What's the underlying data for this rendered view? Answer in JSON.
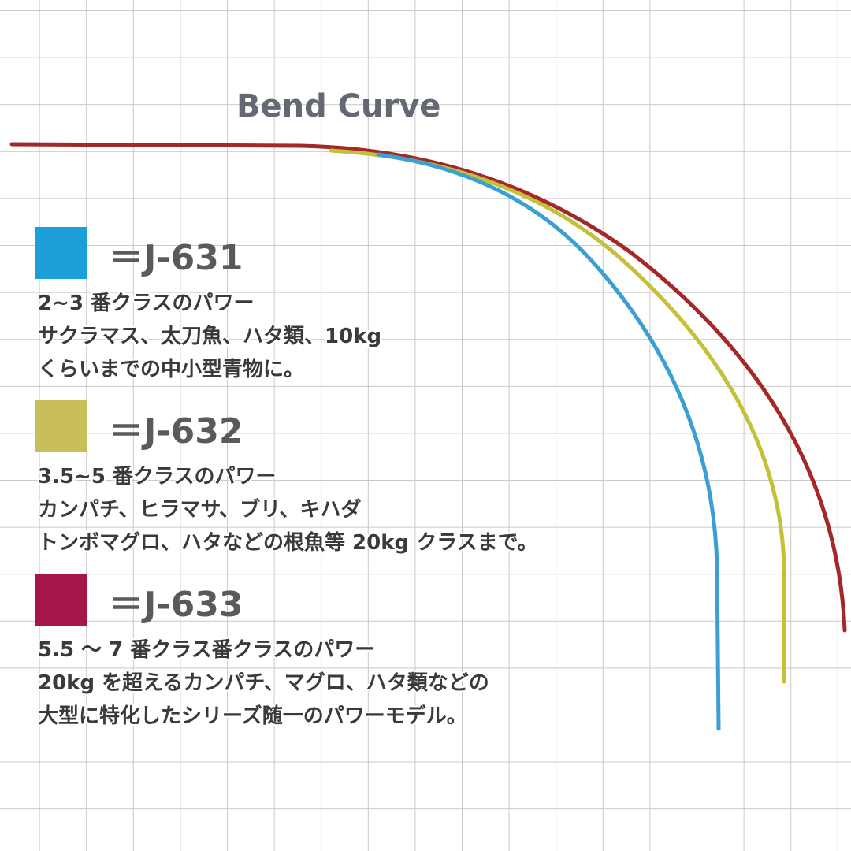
{
  "title": "Bend Curve",
  "legend": [
    {
      "label": "＝J-631",
      "color": "#1c9fd6",
      "lines": [
        "2~3 番クラスのパワー",
        "サクラマス、太刀魚、ハタ類、10kg",
        "くらいまでの中小型青物に。"
      ]
    },
    {
      "label": "＝J-632",
      "color": "#c8bf5a",
      "lines": [
        "3.5~5 番クラスのパワー",
        "カンパチ、ヒラマサ、ブリ、キハダ",
        "トンボマグロ、ハタなどの根魚等 20kg クラスまで。"
      ]
    },
    {
      "label": "＝J-633",
      "color": "#a5154a",
      "lines": [
        "5.5 ～ 7 番クラス番クラスのパワー",
        "20kg を超えるカンパチ、マグロ、ハタ類などの",
        "大型に特化したシリーズ随一のパワーモデル。"
      ]
    }
  ]
}
